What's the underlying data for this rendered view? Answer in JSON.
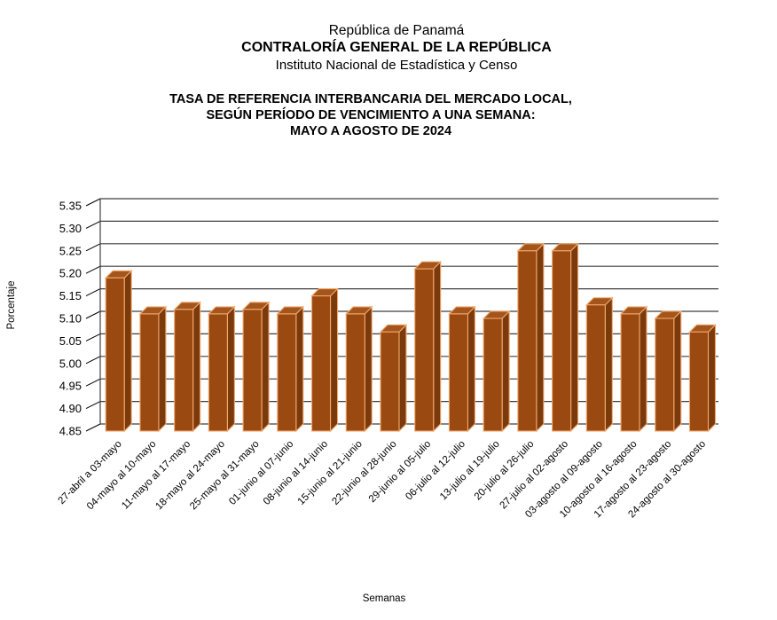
{
  "header": {
    "line1": "República de Panamá",
    "line2": "CONTRALORÍA GENERAL DE LA REPÚBLICA",
    "line3": "Instituto  Nacional de Estadística y Censo"
  },
  "title": {
    "line1": "TASA DE REFERENCIA INTERBANCARIA DEL MERCADO LOCAL,",
    "line2": "SEGÚN PERÍODO DE VENCIMIENTO A UNA SEMANA:",
    "line3": "MAYO A AGOSTO DE 2024"
  },
  "chart_data": {
    "type": "bar",
    "style": "3d-column",
    "title": "TASA DE REFERENCIA INTERBANCARIA DEL MERCADO LOCAL, SEGÚN PERÍODO DE VENCIMIENTO A UNA SEMANA: MAYO A AGOSTO DE 2024",
    "xlabel": "Semanas",
    "ylabel": "Porcentaje",
    "ylim": [
      4.85,
      5.35
    ],
    "ytick_step": 0.05,
    "grid": true,
    "legend_position": "none",
    "categories": [
      "27-abril a 03-mayo",
      "04-mayo al 10-mayo",
      "11-mayo al 17-mayo",
      "18-mayo al 24-mayo",
      "25-mayo al 31-mayo",
      "01-junio al 07-junio",
      "08-junio al 14-junio",
      "15-junio al 21-junio",
      "22-junio al 28-junio",
      "29-junio al 05-julio",
      "06-julio al 12-julio",
      "13-julio al 19-julio",
      "20-julio al 26-julio",
      "27-julio al 02-agosto",
      "03-agosto al 09-agosto",
      "10-agosto al 16-agosto",
      "17-agosto al 23-agosto",
      "24-agosto al 30-agosto"
    ],
    "values": [
      5.19,
      5.11,
      5.12,
      5.11,
      5.12,
      5.11,
      5.15,
      5.11,
      5.07,
      5.21,
      5.11,
      5.1,
      5.25,
      5.25,
      5.13,
      5.11,
      5.1,
      5.07
    ],
    "colors": {
      "bar_front": "#9A4A10",
      "bar_side": "#7B3A0C",
      "bar_top": "#A3551C",
      "bar_outline": "#F2A76C",
      "gridline": "#3F3F3F",
      "tick": "#000000",
      "text": "#000000",
      "background": "#FFFFFF"
    }
  }
}
